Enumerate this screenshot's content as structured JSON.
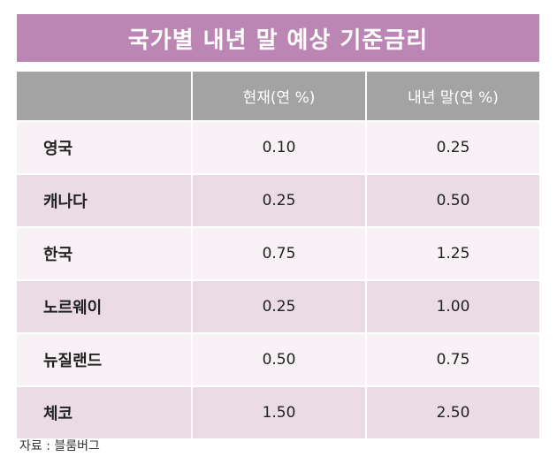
{
  "title": "국가별 내년 말 예상 기준금리",
  "colors": {
    "title_bg": "#bb86b3",
    "header_bg": "#a3a3a3",
    "row_light": "#f8f2f6",
    "row_dark": "#eadbe5"
  },
  "table": {
    "headers": [
      "",
      "현재(연 %)",
      "내년 말(연 %)"
    ],
    "rows": [
      {
        "country": "영국",
        "current": "0.10",
        "next_year_end": "0.25"
      },
      {
        "country": "캐나다",
        "current": "0.25",
        "next_year_end": "0.50"
      },
      {
        "country": "한국",
        "current": "0.75",
        "next_year_end": "1.25"
      },
      {
        "country": "노르웨이",
        "current": "0.25",
        "next_year_end": "1.00"
      },
      {
        "country": "뉴질랜드",
        "current": "0.50",
        "next_year_end": "0.75"
      },
      {
        "country": "체코",
        "current": "1.50",
        "next_year_end": "2.50"
      }
    ]
  },
  "source": "자료 : 블룸버그"
}
